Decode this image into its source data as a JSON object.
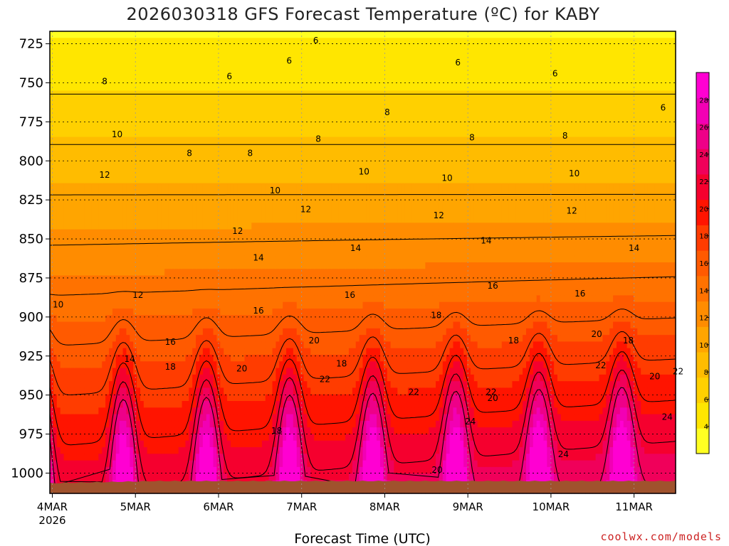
{
  "chart_data": {
    "type": "heatmap",
    "title": "2026030318 GFS Forecast Temperature (ºC) for KABY",
    "xlabel": "Forecast Time (UTC)",
    "ylabel": "",
    "credit": "coolwx.com/models",
    "y_ticks": [
      "725",
      "750",
      "775",
      "800",
      "825",
      "850",
      "875",
      "900",
      "925",
      "950",
      "975",
      "1000"
    ],
    "ylim": [
      717,
      1013
    ],
    "y_scale": "pressure, inverted",
    "x_ticks": [
      {
        "label": "4MAR",
        "sublabel": "2026",
        "day": 0
      },
      {
        "label": "5MAR",
        "sublabel": "",
        "day": 1
      },
      {
        "label": "6MAR",
        "sublabel": "",
        "day": 2
      },
      {
        "label": "7MAR",
        "sublabel": "",
        "day": 3
      },
      {
        "label": "8MAR",
        "sublabel": "",
        "day": 4
      },
      {
        "label": "9MAR",
        "sublabel": "",
        "day": 5
      },
      {
        "label": "10MAR",
        "sublabel": "",
        "day": 6
      },
      {
        "label": "11MAR",
        "sublabel": "",
        "day": 7
      }
    ],
    "xlim_days": [
      -0.03,
      7.5
    ],
    "grid": true,
    "colorbar": {
      "ticks": [
        "4",
        "6",
        "8",
        "10",
        "12",
        "14",
        "16",
        "18",
        "20",
        "22",
        "24",
        "26",
        "28"
      ],
      "range": [
        2,
        30
      ],
      "colors": [
        "#ffff22",
        "#ffe600",
        "#ffd000",
        "#ffbc00",
        "#ffa500",
        "#ff8c00",
        "#ff7200",
        "#ff5a00",
        "#ff3c00",
        "#ff1400",
        "#f5002e",
        "#f0005a",
        "#ee0088",
        "#f200b4",
        "#ff00d2"
      ]
    },
    "contour_labels": [
      {
        "text": "6",
        "day": 3.17,
        "p": 723
      },
      {
        "text": "6",
        "day": 2.85,
        "p": 736
      },
      {
        "text": "6",
        "day": 2.13,
        "p": 746
      },
      {
        "text": "6",
        "day": 4.88,
        "p": 737
      },
      {
        "text": "6",
        "day": 6.05,
        "p": 744
      },
      {
        "text": "6",
        "day": 7.35,
        "p": 766
      },
      {
        "text": "8",
        "day": 0.63,
        "p": 749
      },
      {
        "text": "8",
        "day": 1.65,
        "p": 795
      },
      {
        "text": "8",
        "day": 2.38,
        "p": 795
      },
      {
        "text": "8",
        "day": 3.2,
        "p": 786
      },
      {
        "text": "8",
        "day": 4.03,
        "p": 769
      },
      {
        "text": "8",
        "day": 5.05,
        "p": 785
      },
      {
        "text": "8",
        "day": 6.17,
        "p": 784
      },
      {
        "text": "10",
        "day": 0.78,
        "p": 783
      },
      {
        "text": "10",
        "day": 2.68,
        "p": 819
      },
      {
        "text": "10",
        "day": 3.75,
        "p": 807
      },
      {
        "text": "10",
        "day": 4.75,
        "p": 811
      },
      {
        "text": "10",
        "day": 6.28,
        "p": 808
      },
      {
        "text": "10",
        "day": 0.07,
        "p": 892
      },
      {
        "text": "12",
        "day": 0.63,
        "p": 809
      },
      {
        "text": "12",
        "day": 2.23,
        "p": 845
      },
      {
        "text": "12",
        "day": 3.05,
        "p": 831
      },
      {
        "text": "12",
        "day": 4.65,
        "p": 835
      },
      {
        "text": "12",
        "day": 6.25,
        "p": 832
      },
      {
        "text": "12",
        "day": 1.03,
        "p": 886
      },
      {
        "text": "14",
        "day": 2.48,
        "p": 862
      },
      {
        "text": "14",
        "day": 3.65,
        "p": 856
      },
      {
        "text": "14",
        "day": 5.22,
        "p": 851
      },
      {
        "text": "14",
        "day": 7.0,
        "p": 856
      },
      {
        "text": "14",
        "day": 0.93,
        "p": 927
      },
      {
        "text": "16",
        "day": 1.42,
        "p": 916
      },
      {
        "text": "16",
        "day": 2.48,
        "p": 896
      },
      {
        "text": "16",
        "day": 3.58,
        "p": 886
      },
      {
        "text": "16",
        "day": 5.3,
        "p": 880
      },
      {
        "text": "16",
        "day": 6.35,
        "p": 885
      },
      {
        "text": "18",
        "day": 1.42,
        "p": 932
      },
      {
        "text": "18",
        "day": 3.48,
        "p": 930
      },
      {
        "text": "18",
        "day": 4.62,
        "p": 899
      },
      {
        "text": "18",
        "day": 5.55,
        "p": 915
      },
      {
        "text": "18",
        "day": 6.93,
        "p": 915
      },
      {
        "text": "18",
        "day": 2.7,
        "p": 973
      },
      {
        "text": "20",
        "day": 2.28,
        "p": 933
      },
      {
        "text": "20",
        "day": 3.15,
        "p": 915
      },
      {
        "text": "20",
        "day": 5.3,
        "p": 952
      },
      {
        "text": "20",
        "day": 6.55,
        "p": 911
      },
      {
        "text": "20",
        "day": 7.25,
        "p": 938
      },
      {
        "text": "20",
        "day": 4.63,
        "p": 998
      },
      {
        "text": "22",
        "day": 3.28,
        "p": 940
      },
      {
        "text": "22",
        "day": 4.35,
        "p": 948
      },
      {
        "text": "22",
        "day": 5.28,
        "p": 948
      },
      {
        "text": "22",
        "day": 6.6,
        "p": 931
      },
      {
        "text": "22",
        "day": 7.53,
        "p": 935
      },
      {
        "text": "24",
        "day": 5.03,
        "p": 967
      },
      {
        "text": "24",
        "day": 6.15,
        "p": 988
      },
      {
        "text": "24",
        "day": 7.4,
        "p": 964
      }
    ]
  }
}
